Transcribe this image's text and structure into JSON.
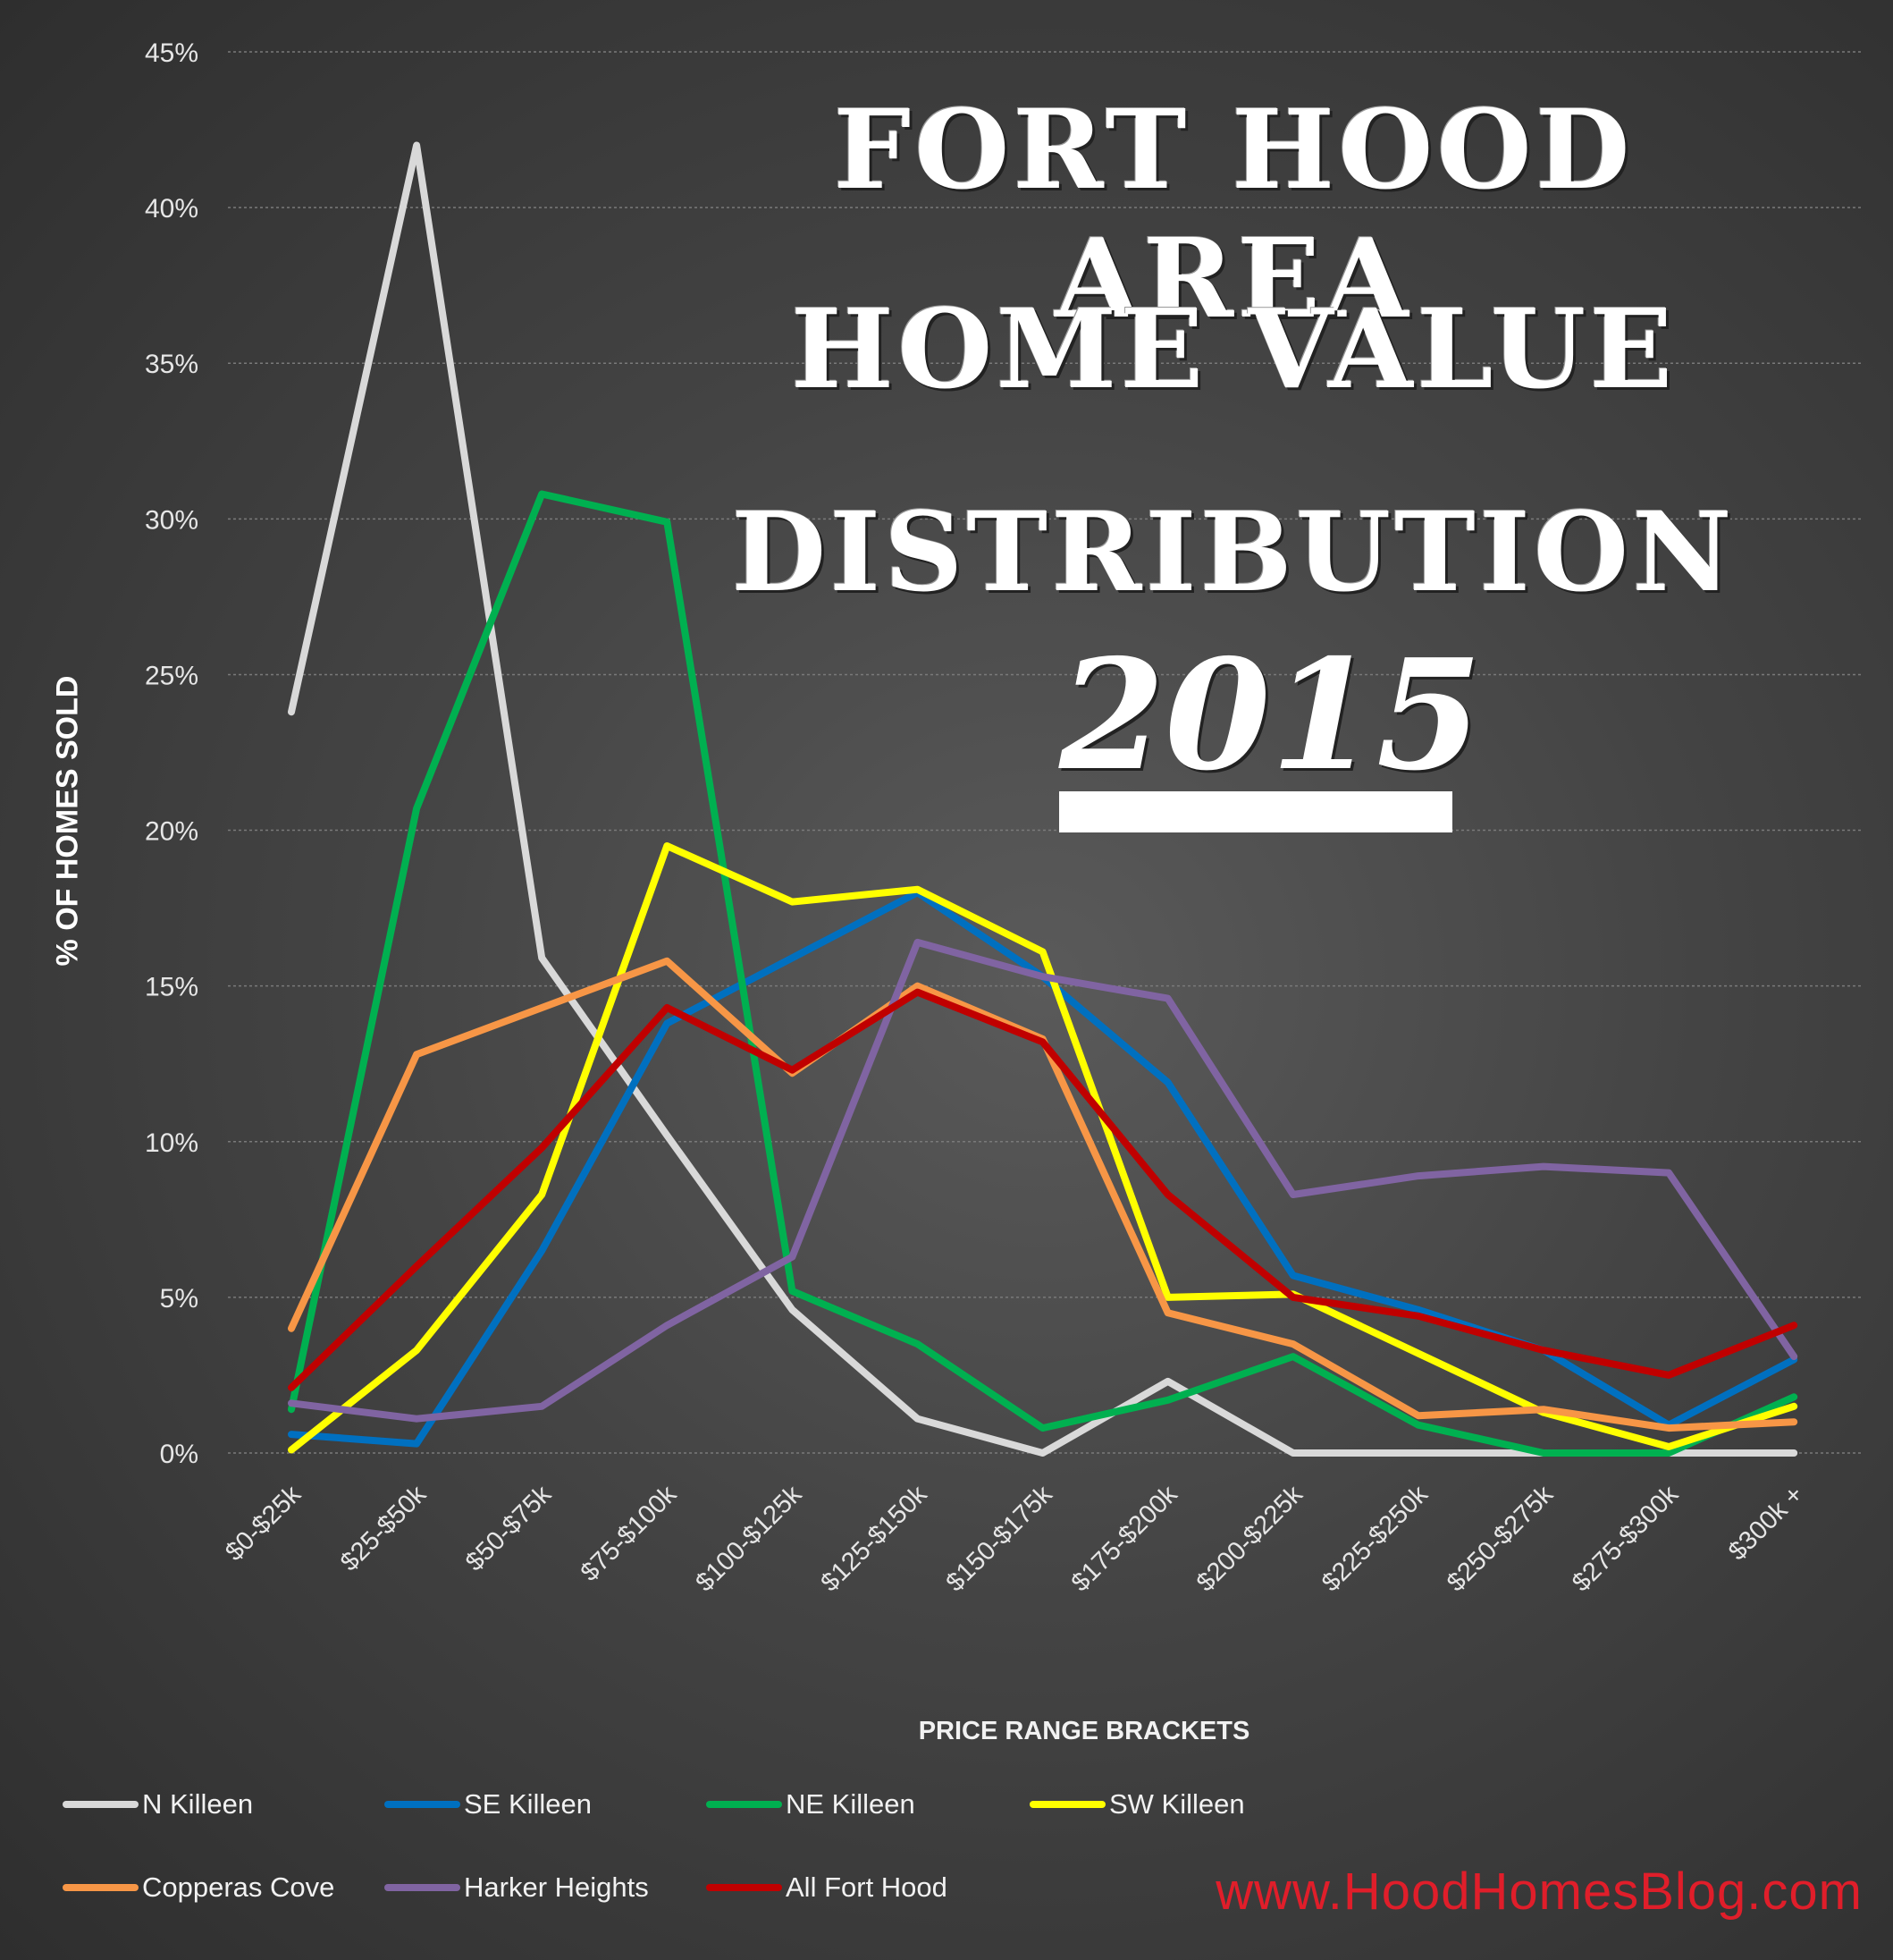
{
  "title_lines": [
    "Fort Hood Area",
    "Home Value",
    "Distribution"
  ],
  "year": "2015",
  "website": "www.HoodHomesBlog.com",
  "colors": {
    "background": "#3d3d3d",
    "website": "#e01e2a"
  },
  "chart_data": {
    "type": "line",
    "xlabel": "PRICE RANGE BRACKETS",
    "ylabel": "% OF HOMES SOLD",
    "ylim": [
      0,
      45
    ],
    "yticks": [
      "0%",
      "5%",
      "10%",
      "15%",
      "20%",
      "25%",
      "30%",
      "35%",
      "40%",
      "45%"
    ],
    "grid": true,
    "legend_position": "bottom",
    "categories": [
      "$0-$25k",
      "$25-$50k",
      "$50-$75k",
      "$75-$100k",
      "$100-$125k",
      "$125-$150k",
      "$150-$175k",
      "$175-$200k",
      "$200-$225k",
      "$225-$250k",
      "$250-$275k",
      "$275-$300k",
      "$300k +"
    ],
    "series": [
      {
        "name": "N Killeen",
        "color": "#d9d9d9",
        "values": [
          23.8,
          42.0,
          15.9,
          10.2,
          4.6,
          1.1,
          0.0,
          2.3,
          0.0,
          0.0,
          0.0,
          0.0,
          0.0
        ]
      },
      {
        "name": "SE Killeen",
        "color": "#0070c0",
        "values": [
          0.6,
          0.3,
          6.5,
          13.8,
          15.9,
          18.0,
          15.3,
          11.9,
          5.7,
          4.6,
          3.3,
          0.9,
          3.0
        ]
      },
      {
        "name": "NE Killeen",
        "color": "#00b050",
        "values": [
          1.4,
          20.7,
          30.8,
          29.9,
          5.2,
          3.5,
          0.8,
          1.7,
          3.1,
          0.9,
          0.0,
          0.0,
          1.8
        ]
      },
      {
        "name": "SW Killeen",
        "color": "#ffff00",
        "values": [
          0.1,
          3.3,
          8.3,
          19.5,
          17.7,
          18.1,
          16.1,
          5.0,
          5.1,
          3.2,
          1.3,
          0.2,
          1.5
        ]
      },
      {
        "name": "Copperas Cove",
        "color": "#f79646",
        "values": [
          4.0,
          12.8,
          14.3,
          15.8,
          12.2,
          15.0,
          13.3,
          4.5,
          3.5,
          1.2,
          1.4,
          0.8,
          1.0
        ]
      },
      {
        "name": "Harker Heights",
        "color": "#8064a2",
        "values": [
          1.6,
          1.1,
          1.5,
          4.1,
          6.3,
          16.4,
          15.3,
          14.6,
          8.3,
          8.9,
          9.2,
          9.0,
          3.1
        ]
      },
      {
        "name": "All Fort Hood",
        "color": "#c00000",
        "values": [
          2.1,
          6.0,
          9.8,
          14.3,
          12.3,
          14.8,
          13.2,
          8.3,
          5.0,
          4.4,
          3.3,
          2.5,
          4.1
        ]
      }
    ]
  }
}
